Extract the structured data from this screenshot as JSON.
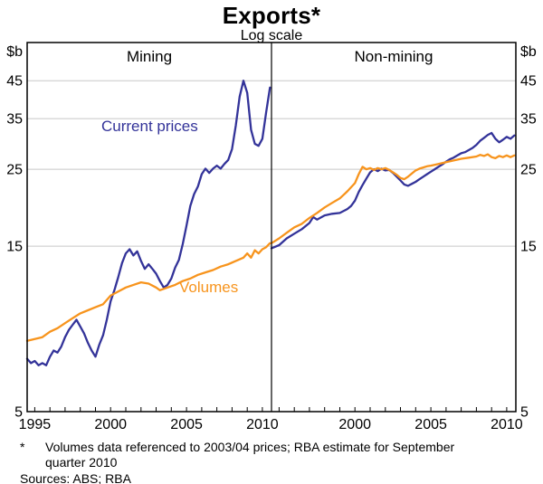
{
  "header": {
    "title": "Exports*",
    "subtitle": "Log scale"
  },
  "colors": {
    "current_prices": "#333399",
    "volumes": "#f7941d",
    "grid": "#c8c8c8",
    "axis": "#000000"
  },
  "axes": {
    "unit": "$b",
    "yscale": "log",
    "ylim": [
      5,
      58
    ],
    "xlim": [
      1994.5,
      2010.6
    ],
    "y_ticks": [
      5,
      15,
      25,
      35,
      45
    ],
    "minor_x_ticks": {
      "start": 1995,
      "end": 2010,
      "step": 1
    }
  },
  "footnote": {
    "marker": "*",
    "line1": "Volumes data referenced to 2003/04 prices; RBA estimate for September",
    "line2": "quarter 2010",
    "sources": "Sources: ABS; RBA"
  },
  "chart_data": [
    {
      "type": "line",
      "title": "Mining",
      "ylabel": "$b",
      "yscale": "log",
      "ylim": [
        5,
        58
      ],
      "x_ticks": [
        1995,
        2000,
        2005,
        2010
      ],
      "series": [
        {
          "name": "Current prices",
          "color": "#333399",
          "points": [
            [
              1994.5,
              7.1
            ],
            [
              1994.75,
              6.9
            ],
            [
              1995,
              7.0
            ],
            [
              1995.25,
              6.8
            ],
            [
              1995.5,
              6.9
            ],
            [
              1995.75,
              6.8
            ],
            [
              1996,
              7.2
            ],
            [
              1996.25,
              7.5
            ],
            [
              1996.5,
              7.4
            ],
            [
              1996.75,
              7.7
            ],
            [
              1997,
              8.2
            ],
            [
              1997.25,
              8.6
            ],
            [
              1997.5,
              8.9
            ],
            [
              1997.75,
              9.2
            ],
            [
              1998,
              8.8
            ],
            [
              1998.25,
              8.4
            ],
            [
              1998.5,
              7.9
            ],
            [
              1998.75,
              7.5
            ],
            [
              1999,
              7.2
            ],
            [
              1999.25,
              7.8
            ],
            [
              1999.5,
              8.3
            ],
            [
              1999.75,
              9.2
            ],
            [
              2000,
              10.4
            ],
            [
              2000.25,
              11.2
            ],
            [
              2000.5,
              12.2
            ],
            [
              2000.75,
              13.4
            ],
            [
              2001,
              14.3
            ],
            [
              2001.25,
              14.7
            ],
            [
              2001.5,
              14.1
            ],
            [
              2001.75,
              14.5
            ],
            [
              2002,
              13.6
            ],
            [
              2002.25,
              12.9
            ],
            [
              2002.5,
              13.3
            ],
            [
              2002.75,
              12.9
            ],
            [
              2003,
              12.5
            ],
            [
              2003.25,
              11.9
            ],
            [
              2003.5,
              11.4
            ],
            [
              2003.75,
              11.6
            ],
            [
              2004,
              12.1
            ],
            [
              2004.25,
              13.0
            ],
            [
              2004.5,
              13.7
            ],
            [
              2004.75,
              15.2
            ],
            [
              2005,
              17.2
            ],
            [
              2005.25,
              19.6
            ],
            [
              2005.5,
              21.2
            ],
            [
              2005.75,
              22.3
            ],
            [
              2006,
              24.2
            ],
            [
              2006.25,
              25.1
            ],
            [
              2006.5,
              24.4
            ],
            [
              2006.75,
              25.1
            ],
            [
              2007,
              25.6
            ],
            [
              2007.25,
              25.1
            ],
            [
              2007.5,
              25.9
            ],
            [
              2007.75,
              26.6
            ],
            [
              2008,
              28.6
            ],
            [
              2008.25,
              33.5
            ],
            [
              2008.5,
              40.5
            ],
            [
              2008.75,
              45.0
            ],
            [
              2009,
              41.5
            ],
            [
              2009.25,
              32.5
            ],
            [
              2009.5,
              29.6
            ],
            [
              2009.75,
              29.2
            ],
            [
              2010,
              30.6
            ],
            [
              2010.25,
              36.5
            ],
            [
              2010.5,
              43.0
            ]
          ]
        },
        {
          "name": "Volumes",
          "color": "#f7941d",
          "points": [
            [
              1994.5,
              8.0
            ],
            [
              1995,
              8.1
            ],
            [
              1995.5,
              8.2
            ],
            [
              1996,
              8.5
            ],
            [
              1996.5,
              8.7
            ],
            [
              1997,
              9.0
            ],
            [
              1997.5,
              9.3
            ],
            [
              1998,
              9.6
            ],
            [
              1998.5,
              9.8
            ],
            [
              1999,
              10.0
            ],
            [
              1999.5,
              10.2
            ],
            [
              2000,
              10.8
            ],
            [
              2000.5,
              11.1
            ],
            [
              2001,
              11.4
            ],
            [
              2001.5,
              11.6
            ],
            [
              2002,
              11.8
            ],
            [
              2002.5,
              11.7
            ],
            [
              2003,
              11.4
            ],
            [
              2003.25,
              11.2
            ],
            [
              2003.75,
              11.4
            ],
            [
              2004.25,
              11.6
            ],
            [
              2004.75,
              11.9
            ],
            [
              2005.25,
              12.1
            ],
            [
              2005.75,
              12.4
            ],
            [
              2006.25,
              12.6
            ],
            [
              2006.75,
              12.8
            ],
            [
              2007.25,
              13.1
            ],
            [
              2007.75,
              13.3
            ],
            [
              2008.25,
              13.6
            ],
            [
              2008.75,
              13.9
            ],
            [
              2009,
              14.3
            ],
            [
              2009.25,
              13.9
            ],
            [
              2009.5,
              14.6
            ],
            [
              2009.75,
              14.3
            ],
            [
              2010,
              14.7
            ],
            [
              2010.25,
              14.9
            ],
            [
              2010.5,
              15.3
            ]
          ]
        }
      ]
    },
    {
      "type": "line",
      "title": "Non-mining",
      "ylabel": "$b",
      "yscale": "log",
      "ylim": [
        5,
        58
      ],
      "x_ticks": [
        2000,
        2005,
        2010
      ],
      "series": [
        {
          "name": "Current prices",
          "color": "#333399",
          "points": [
            [
              1994.5,
              14.8
            ],
            [
              1995,
              15.1
            ],
            [
              1995.5,
              15.8
            ],
            [
              1996,
              16.3
            ],
            [
              1996.5,
              16.8
            ],
            [
              1997,
              17.5
            ],
            [
              1997.25,
              18.2
            ],
            [
              1997.5,
              17.9
            ],
            [
              1998,
              18.4
            ],
            [
              1998.5,
              18.6
            ],
            [
              1999,
              18.7
            ],
            [
              1999.5,
              19.2
            ],
            [
              1999.75,
              19.6
            ],
            [
              2000,
              20.3
            ],
            [
              2000.25,
              21.5
            ],
            [
              2000.5,
              22.5
            ],
            [
              2000.75,
              23.5
            ],
            [
              2001,
              24.5
            ],
            [
              2001.25,
              25.0
            ],
            [
              2001.5,
              24.7
            ],
            [
              2001.75,
              25.1
            ],
            [
              2002,
              24.8
            ],
            [
              2002.25,
              24.9
            ],
            [
              2002.5,
              24.4
            ],
            [
              2002.75,
              23.8
            ],
            [
              2003,
              23.2
            ],
            [
              2003.25,
              22.6
            ],
            [
              2003.5,
              22.4
            ],
            [
              2003.75,
              22.7
            ],
            [
              2004,
              23.0
            ],
            [
              2004.25,
              23.4
            ],
            [
              2004.5,
              23.8
            ],
            [
              2004.75,
              24.2
            ],
            [
              2005,
              24.6
            ],
            [
              2005.25,
              25.0
            ],
            [
              2005.5,
              25.4
            ],
            [
              2005.75,
              25.8
            ],
            [
              2006,
              26.3
            ],
            [
              2006.25,
              26.7
            ],
            [
              2006.5,
              27.0
            ],
            [
              2006.75,
              27.4
            ],
            [
              2007,
              27.8
            ],
            [
              2007.25,
              28.0
            ],
            [
              2007.5,
              28.4
            ],
            [
              2007.75,
              28.8
            ],
            [
              2008,
              29.4
            ],
            [
              2008.25,
              30.2
            ],
            [
              2008.5,
              30.8
            ],
            [
              2008.75,
              31.4
            ],
            [
              2009,
              31.8
            ],
            [
              2009.25,
              30.6
            ],
            [
              2009.5,
              29.9
            ],
            [
              2009.75,
              30.4
            ],
            [
              2010,
              31.0
            ],
            [
              2010.25,
              30.6
            ],
            [
              2010.5,
              31.3
            ]
          ]
        },
        {
          "name": "Volumes",
          "color": "#f7941d",
          "points": [
            [
              1994.5,
              15.3
            ],
            [
              1995,
              15.8
            ],
            [
              1995.5,
              16.4
            ],
            [
              1996,
              17.0
            ],
            [
              1996.5,
              17.4
            ],
            [
              1997,
              18.1
            ],
            [
              1997.5,
              18.7
            ],
            [
              1998,
              19.4
            ],
            [
              1998.5,
              20.0
            ],
            [
              1999,
              20.6
            ],
            [
              1999.5,
              21.6
            ],
            [
              2000,
              22.8
            ],
            [
              2000.25,
              24.2
            ],
            [
              2000.5,
              25.4
            ],
            [
              2000.75,
              25.0
            ],
            [
              2001,
              25.2
            ],
            [
              2001.25,
              24.9
            ],
            [
              2001.5,
              25.2
            ],
            [
              2001.75,
              25.0
            ],
            [
              2002,
              25.2
            ],
            [
              2002.25,
              24.9
            ],
            [
              2002.5,
              24.5
            ],
            [
              2002.75,
              24.1
            ],
            [
              2003,
              23.6
            ],
            [
              2003.25,
              23.4
            ],
            [
              2003.5,
              23.8
            ],
            [
              2003.75,
              24.3
            ],
            [
              2004,
              24.8
            ],
            [
              2004.25,
              25.1
            ],
            [
              2004.5,
              25.3
            ],
            [
              2004.75,
              25.5
            ],
            [
              2005,
              25.6
            ],
            [
              2005.5,
              25.9
            ],
            [
              2006,
              26.2
            ],
            [
              2006.5,
              26.5
            ],
            [
              2007,
              26.8
            ],
            [
              2007.5,
              27.0
            ],
            [
              2008,
              27.2
            ],
            [
              2008.25,
              27.5
            ],
            [
              2008.5,
              27.3
            ],
            [
              2008.75,
              27.6
            ],
            [
              2009,
              27.1
            ],
            [
              2009.25,
              26.9
            ],
            [
              2009.5,
              27.3
            ],
            [
              2009.75,
              27.1
            ],
            [
              2010,
              27.4
            ],
            [
              2010.25,
              27.1
            ],
            [
              2010.5,
              27.4
            ]
          ]
        }
      ]
    }
  ]
}
